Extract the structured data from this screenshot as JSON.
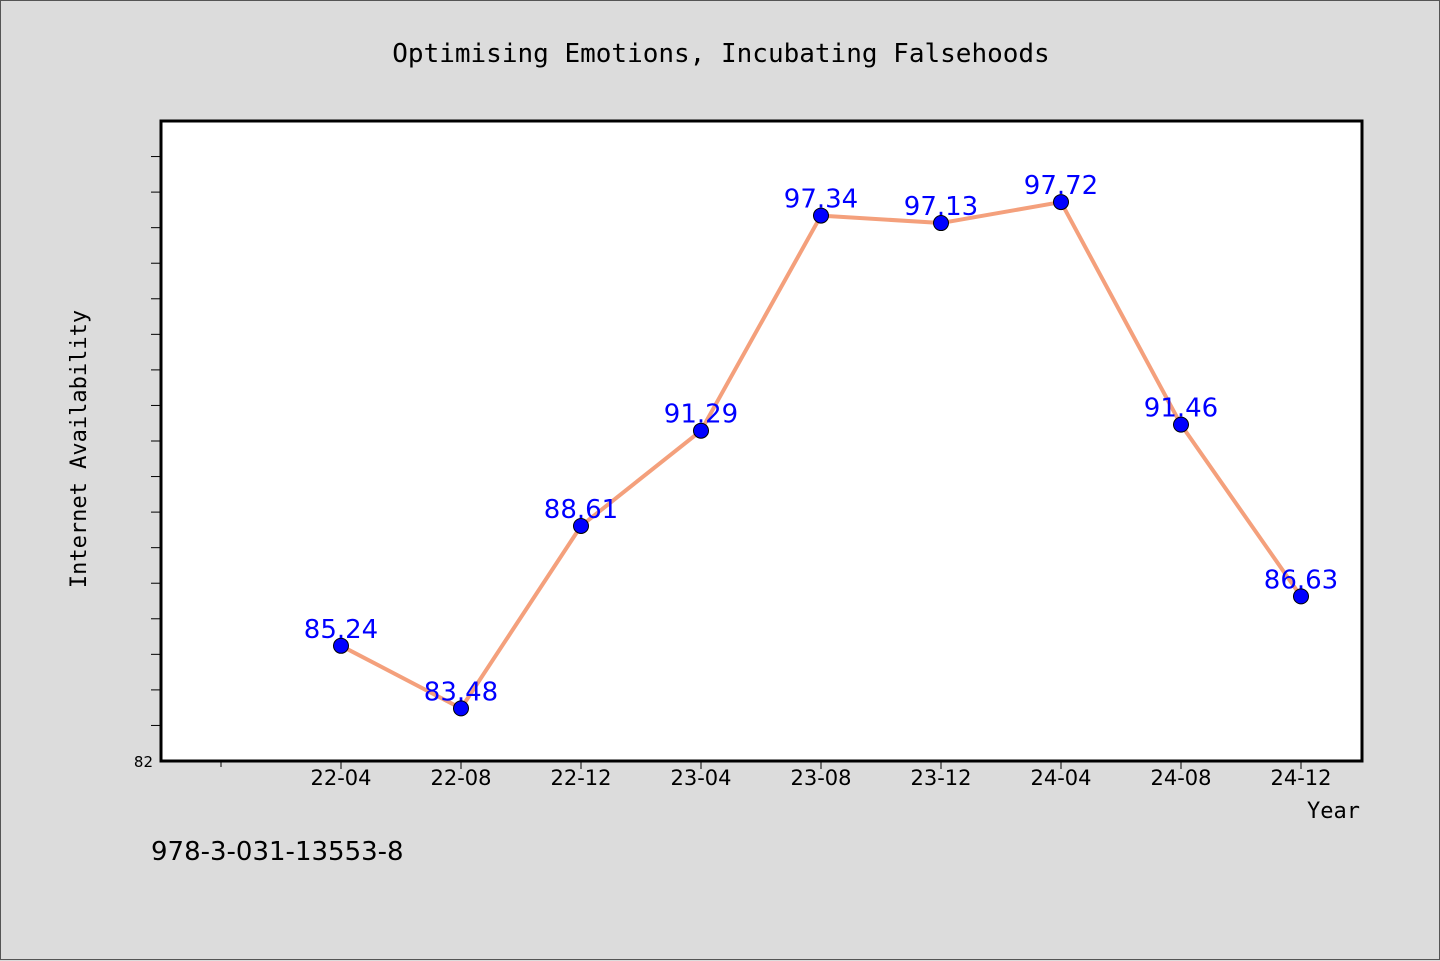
{
  "chart_data": {
    "type": "line",
    "title": "Optimising Emotions, Incubating Falsehoods",
    "xlabel": "Year",
    "ylabel": "Internet Availability",
    "categories": [
      "22-04",
      "22-08",
      "22-12",
      "23-04",
      "23-08",
      "23-12",
      "24-04",
      "24-08",
      "24-12"
    ],
    "series": [
      {
        "values": [
          85.24,
          83.48,
          88.61,
          91.29,
          97.34,
          97.13,
          97.72,
          91.46,
          86.63
        ],
        "labels": [
          "85.24",
          "83.48",
          "88.61",
          "91.29",
          "97.34",
          "97.13",
          "97.72",
          "91.46",
          "86.63"
        ]
      }
    ],
    "ylim": [
      82,
      100
    ],
    "y_tick_label": "82",
    "grid": false,
    "colors": {
      "line": "#f4a07c",
      "marker": "#0000ff",
      "label": "#0000ff",
      "background": "#dcdcdc",
      "plot_background": "#ffffff"
    }
  },
  "footer": {
    "isbn": "978-3-031-13553-8"
  }
}
